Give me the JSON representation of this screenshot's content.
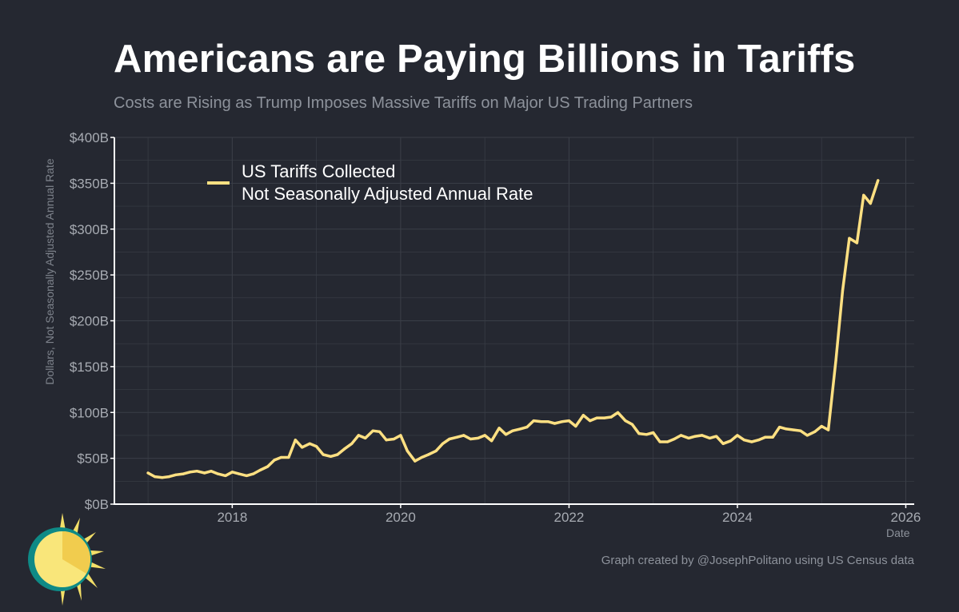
{
  "header": {
    "title": "Americans are Paying Billions in Tariffs",
    "subtitle": "Costs are Rising as Trump Imposes Massive Tariffs on Major US Trading Partners"
  },
  "footer": {
    "credit": "Graph created by @JosephPolitano using US Census data"
  },
  "logo": {
    "icon": "sun-logo-icon"
  },
  "colors": {
    "background": "#252831",
    "line": "#ffe082",
    "grid": "#3a3e47",
    "axis": "#ffffff"
  },
  "chart_data": {
    "type": "line",
    "title": "Americans are Paying Billions in Tariffs",
    "subtitle": "Costs are Rising as Trump Imposes Massive Tariffs on Major US Trading Partners",
    "xlabel": "Date",
    "ylabel": "Dollars, Not Seasonally Adjusted Annual Rate",
    "xlim": [
      2016.6,
      2026.1
    ],
    "ylim": [
      0,
      400
    ],
    "y_ticks": [
      0,
      50,
      100,
      150,
      200,
      250,
      300,
      350,
      400
    ],
    "y_tick_labels": [
      "$0B",
      "$50B",
      "$100B",
      "$150B",
      "$200B",
      "$250B",
      "$300B",
      "$350B",
      "$400B"
    ],
    "x_ticks": [
      2018,
      2020,
      2022,
      2024,
      2026
    ],
    "x_tick_labels": [
      "2018",
      "2020",
      "2022",
      "2024",
      "2026"
    ],
    "grid": true,
    "legend_position": "top-left",
    "series": [
      {
        "name": "US Tariffs Collected",
        "legend_lines": [
          "US Tariffs Collected",
          "Not Seasonally Adjusted Annual Rate"
        ],
        "color": "#ffe082",
        "points": [
          [
            2017.0,
            34
          ],
          [
            2017.08,
            30
          ],
          [
            2017.17,
            29
          ],
          [
            2017.25,
            30
          ],
          [
            2017.33,
            32
          ],
          [
            2017.42,
            33
          ],
          [
            2017.5,
            35
          ],
          [
            2017.58,
            36
          ],
          [
            2017.67,
            34
          ],
          [
            2017.75,
            36
          ],
          [
            2017.83,
            33
          ],
          [
            2017.92,
            31
          ],
          [
            2018.0,
            35
          ],
          [
            2018.08,
            33
          ],
          [
            2018.17,
            31
          ],
          [
            2018.25,
            33
          ],
          [
            2018.33,
            37
          ],
          [
            2018.42,
            41
          ],
          [
            2018.5,
            48
          ],
          [
            2018.58,
            51
          ],
          [
            2018.67,
            51
          ],
          [
            2018.75,
            70
          ],
          [
            2018.83,
            62
          ],
          [
            2018.92,
            66
          ],
          [
            2019.0,
            63
          ],
          [
            2019.08,
            54
          ],
          [
            2019.17,
            52
          ],
          [
            2019.25,
            54
          ],
          [
            2019.33,
            60
          ],
          [
            2019.42,
            66
          ],
          [
            2019.5,
            75
          ],
          [
            2019.58,
            72
          ],
          [
            2019.67,
            80
          ],
          [
            2019.75,
            79
          ],
          [
            2019.83,
            70
          ],
          [
            2019.92,
            71
          ],
          [
            2020.0,
            75
          ],
          [
            2020.08,
            58
          ],
          [
            2020.17,
            47
          ],
          [
            2020.25,
            51
          ],
          [
            2020.33,
            54
          ],
          [
            2020.42,
            58
          ],
          [
            2020.5,
            66
          ],
          [
            2020.58,
            71
          ],
          [
            2020.67,
            73
          ],
          [
            2020.75,
            75
          ],
          [
            2020.83,
            71
          ],
          [
            2020.92,
            72
          ],
          [
            2021.0,
            75
          ],
          [
            2021.08,
            69
          ],
          [
            2021.17,
            83
          ],
          [
            2021.25,
            76
          ],
          [
            2021.33,
            80
          ],
          [
            2021.42,
            82
          ],
          [
            2021.5,
            84
          ],
          [
            2021.58,
            91
          ],
          [
            2021.67,
            90
          ],
          [
            2021.75,
            90
          ],
          [
            2021.83,
            88
          ],
          [
            2021.92,
            90
          ],
          [
            2022.0,
            91
          ],
          [
            2022.08,
            85
          ],
          [
            2022.17,
            97
          ],
          [
            2022.25,
            91
          ],
          [
            2022.33,
            94
          ],
          [
            2022.42,
            94
          ],
          [
            2022.5,
            95
          ],
          [
            2022.58,
            100
          ],
          [
            2022.67,
            91
          ],
          [
            2022.75,
            87
          ],
          [
            2022.83,
            77
          ],
          [
            2022.92,
            76
          ],
          [
            2023.0,
            78
          ],
          [
            2023.08,
            68
          ],
          [
            2023.17,
            68
          ],
          [
            2023.25,
            71
          ],
          [
            2023.33,
            75
          ],
          [
            2023.42,
            72
          ],
          [
            2023.5,
            74
          ],
          [
            2023.58,
            75
          ],
          [
            2023.67,
            72
          ],
          [
            2023.75,
            74
          ],
          [
            2023.83,
            66
          ],
          [
            2023.92,
            69
          ],
          [
            2024.0,
            75
          ],
          [
            2024.08,
            70
          ],
          [
            2024.17,
            68
          ],
          [
            2024.25,
            70
          ],
          [
            2024.33,
            73
          ],
          [
            2024.42,
            73
          ],
          [
            2024.5,
            84
          ],
          [
            2024.58,
            82
          ],
          [
            2024.67,
            81
          ],
          [
            2024.75,
            80
          ],
          [
            2024.83,
            75
          ],
          [
            2024.92,
            79
          ],
          [
            2025.0,
            85
          ],
          [
            2025.08,
            81
          ],
          [
            2025.17,
            157
          ],
          [
            2025.25,
            233
          ],
          [
            2025.33,
            290
          ],
          [
            2025.42,
            285
          ],
          [
            2025.5,
            337
          ],
          [
            2025.58,
            328
          ],
          [
            2025.67,
            353
          ]
        ]
      }
    ]
  }
}
